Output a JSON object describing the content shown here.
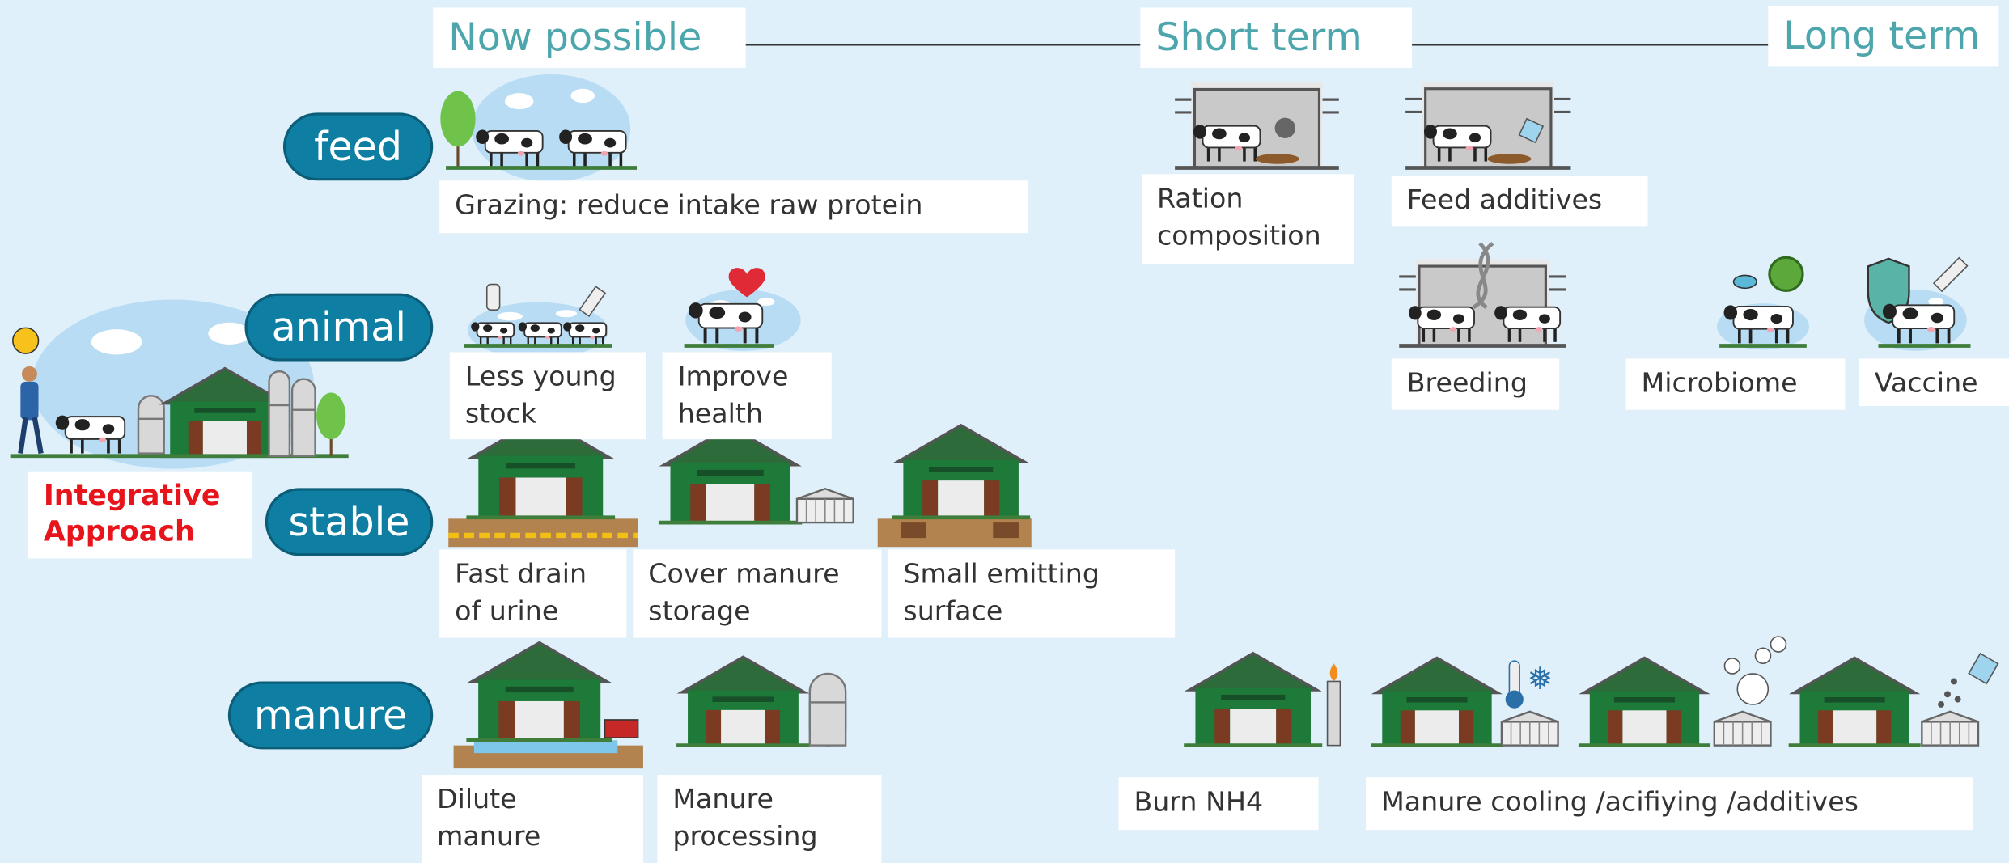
{
  "timeline": [
    "Now possible",
    "Short term",
    "Long term"
  ],
  "approach": "Integrative Approach",
  "rows": [
    {
      "label": "feed",
      "items": [
        "Grazing: reduce intake raw protein",
        "Ration composition",
        "Feed additives"
      ]
    },
    {
      "label": "animal",
      "items": [
        "Less young stock",
        "Improve health",
        "Breeding",
        "Microbiome",
        "Vaccine"
      ]
    },
    {
      "label": "stable",
      "items": [
        "Fast drain of urine",
        "Cover manure storage",
        "Small emitting surface"
      ]
    },
    {
      "label": "manure",
      "items": [
        "Dilute manure",
        "Manure processing",
        "Burn NH4",
        "Manure cooling /acifiying /additives"
      ]
    }
  ]
}
